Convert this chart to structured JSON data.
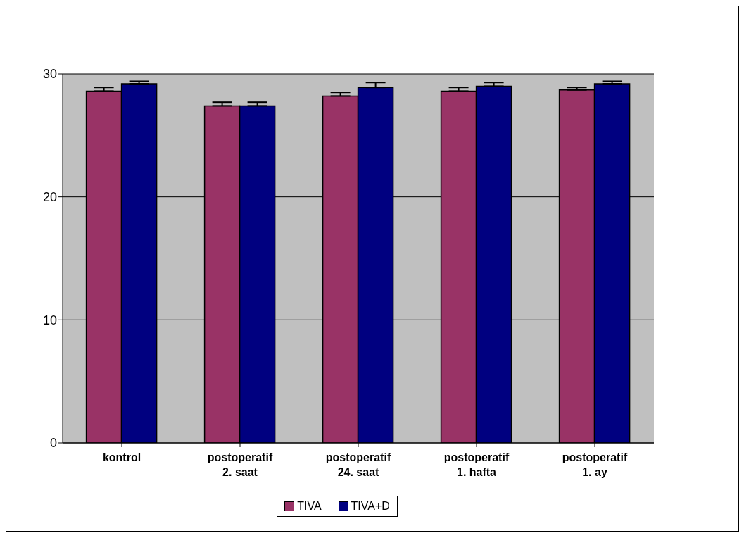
{
  "chart_data": {
    "type": "bar",
    "categories": [
      "kontrol",
      "postoperatif\n2. saat",
      "postoperatif\n24. saat",
      "postoperatif\n1. hafta",
      "postoperatif\n1. ay"
    ],
    "series": [
      {
        "name": "TIVA",
        "color": "#993366",
        "values": [
          28.6,
          27.4,
          28.2,
          28.6,
          28.7
        ],
        "errors": [
          [
            28.6,
            28.9
          ],
          [
            27.4,
            27.7
          ],
          [
            28.2,
            28.5
          ],
          [
            28.6,
            28.9
          ],
          [
            28.7,
            28.9
          ]
        ]
      },
      {
        "name": "TIVA+D",
        "color": "#000080",
        "values": [
          29.2,
          27.4,
          28.9,
          29.0,
          29.2
        ],
        "errors": [
          [
            29.2,
            29.4
          ],
          [
            27.4,
            27.7
          ],
          [
            28.9,
            29.3
          ],
          [
            29.0,
            29.3
          ],
          [
            29.2,
            29.4
          ]
        ]
      }
    ],
    "ylim": [
      0,
      30
    ],
    "yticks": [
      0,
      10,
      20,
      30
    ],
    "grid": "y",
    "legend": "bottom"
  }
}
